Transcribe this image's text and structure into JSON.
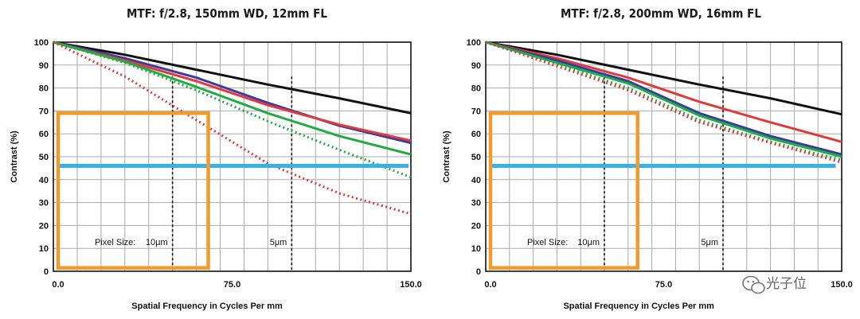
{
  "colors": {
    "black": "#111111",
    "red": "#e23a3a",
    "blue": "#3a3aa0",
    "green": "#22aa44",
    "threshold": "#39b0e8",
    "box": "#f39a2b",
    "grid": "#a9a9a9"
  },
  "chart_data": [
    {
      "type": "line",
      "title": "MTF: f/2.8, 150mm WD, 12mm FL",
      "xlabel": "Spatial Frequency in Cycles Per mm",
      "ylabel": "Contrast (%)",
      "xlim": [
        0,
        150
      ],
      "ylim": [
        0,
        100
      ],
      "x_ticks": [
        "0.0",
        "75.0",
        "150.0"
      ],
      "y_ticks": [
        "0",
        "10",
        "20",
        "30",
        "40",
        "50",
        "60",
        "70",
        "80",
        "90",
        "100"
      ],
      "grid": true,
      "series": [
        {
          "color": "black",
          "style": "solid",
          "x": [
            0,
            30,
            60,
            90,
            120,
            150
          ],
          "y": [
            100,
            94.5,
            88,
            81.5,
            75.5,
            69
          ]
        },
        {
          "color": "blue",
          "style": "solid",
          "x": [
            0,
            30,
            60,
            90,
            120,
            150
          ],
          "y": [
            100,
            93,
            84.5,
            73.5,
            63.5,
            56
          ]
        },
        {
          "color": "red",
          "style": "solid",
          "x": [
            0,
            30,
            60,
            90,
            120,
            150
          ],
          "y": [
            100,
            92,
            83,
            72.5,
            64,
            57
          ]
        },
        {
          "color": "green",
          "style": "solid",
          "x": [
            0,
            30,
            60,
            90,
            120,
            150
          ],
          "y": [
            100,
            91.5,
            80.5,
            69,
            59,
            51
          ]
        },
        {
          "color": "green",
          "style": "dotted",
          "x": [
            0,
            30,
            60,
            90,
            120,
            150
          ],
          "y": [
            100,
            91,
            79,
            65.5,
            53,
            41
          ]
        },
        {
          "color": "red",
          "style": "dotted",
          "x": [
            0,
            30,
            60,
            90,
            120,
            150
          ],
          "y": [
            100,
            85,
            66,
            47,
            34,
            25
          ]
        },
        {
          "color": "threshold",
          "style": "thick",
          "x": [
            1.5,
            149
          ],
          "y": [
            46,
            46
          ]
        }
      ],
      "vlines": [
        {
          "x": 50,
          "label": "10μm"
        },
        {
          "x": 100,
          "label": "5μm"
        }
      ],
      "pixel_size_label": "Pixel Size:",
      "highlight_box": {
        "x": [
          2,
          65
        ],
        "y": [
          1.5,
          69
        ]
      }
    },
    {
      "type": "line",
      "title": "MTF: f/2.8, 200mm WD, 16mm FL",
      "xlabel": "Spatial Frequency in Cycles Per mm",
      "ylabel": "Contrast (%)",
      "xlim": [
        0,
        150
      ],
      "ylim": [
        0,
        100
      ],
      "x_ticks": [
        "0.0",
        "75.0",
        "150.0"
      ],
      "y_ticks": [
        "0",
        "10",
        "20",
        "30",
        "40",
        "50",
        "60",
        "70",
        "80",
        "90",
        "100"
      ],
      "grid": true,
      "series": [
        {
          "color": "black",
          "style": "solid",
          "x": [
            0,
            30,
            60,
            90,
            120,
            150
          ],
          "y": [
            100,
            94.5,
            88,
            81.5,
            75.5,
            68.5
          ]
        },
        {
          "color": "red",
          "style": "solid",
          "x": [
            0,
            30,
            60,
            90,
            120,
            150
          ],
          "y": [
            100,
            93,
            84.5,
            74,
            65,
            56.5
          ]
        },
        {
          "color": "blue",
          "style": "solid",
          "x": [
            0,
            30,
            60,
            90,
            120,
            150
          ],
          "y": [
            100,
            92,
            83,
            69,
            59,
            51
          ]
        },
        {
          "color": "green",
          "style": "solid",
          "x": [
            0,
            30,
            60,
            90,
            120,
            150
          ],
          "y": [
            100,
            91,
            82,
            68,
            58,
            50
          ]
        },
        {
          "color": "green",
          "style": "dotted",
          "x": [
            0,
            30,
            60,
            90,
            120,
            150
          ],
          "y": [
            100,
            90.5,
            80,
            66,
            56.5,
            48.5
          ]
        },
        {
          "color": "red",
          "style": "dotted",
          "x": [
            0,
            30,
            60,
            90,
            120,
            150
          ],
          "y": [
            100,
            89.5,
            79,
            65,
            56,
            47.5
          ]
        },
        {
          "color": "threshold",
          "style": "thick",
          "x": [
            2.5,
            147.5
          ],
          "y": [
            46,
            46
          ]
        }
      ],
      "vlines": [
        {
          "x": 50,
          "label": "10μm"
        },
        {
          "x": 100,
          "label": "5μm"
        }
      ],
      "pixel_size_label": "Pixel Size:",
      "highlight_box": {
        "x": [
          2,
          64
        ],
        "y": [
          1.5,
          69
        ]
      }
    }
  ],
  "watermark": {
    "text": "光子位",
    "icon": "wechat-icon"
  }
}
